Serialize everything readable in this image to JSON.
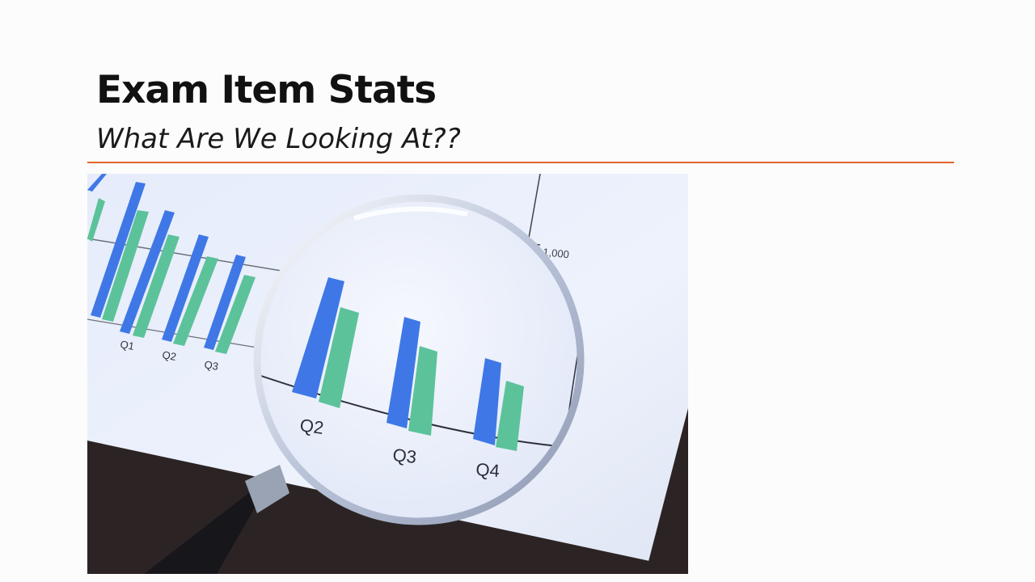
{
  "slide": {
    "title": "Exam Item Stats",
    "subtitle": "What Are We Looking At??",
    "accent_color": "#e2662b"
  },
  "photo": {
    "icon": "magnifying-glass-over-bar-chart",
    "printed_labels": {
      "background_quarters": [
        "Q1",
        "Q2",
        "Q3"
      ],
      "magnified_quarters": [
        "Q2",
        "Q3",
        "Q4"
      ],
      "axis_value": "1,000"
    },
    "series_colors": [
      "#3f78e6",
      "#5cc29a"
    ]
  }
}
